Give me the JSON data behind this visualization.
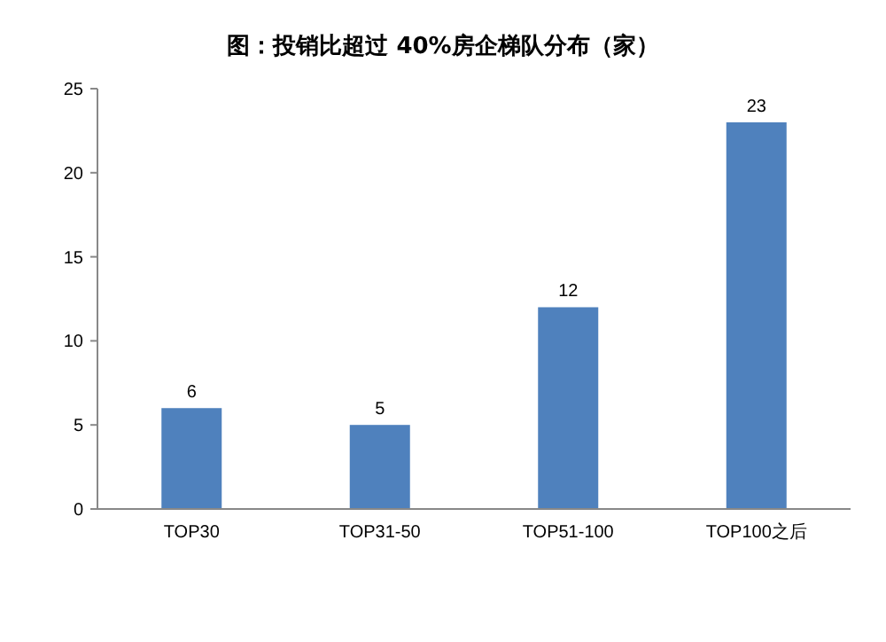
{
  "chart_data": {
    "type": "bar",
    "title": "图：投销比超过 40%房企梯队分布（家）",
    "categories": [
      "TOP30",
      "TOP31-50",
      "TOP51-100",
      "TOP100之后"
    ],
    "values": [
      6,
      5,
      12,
      23
    ],
    "color": "#4f81bd",
    "ylim": [
      0,
      25
    ],
    "yticks": [
      0,
      5,
      10,
      15,
      20,
      25
    ],
    "data_labels": true
  }
}
